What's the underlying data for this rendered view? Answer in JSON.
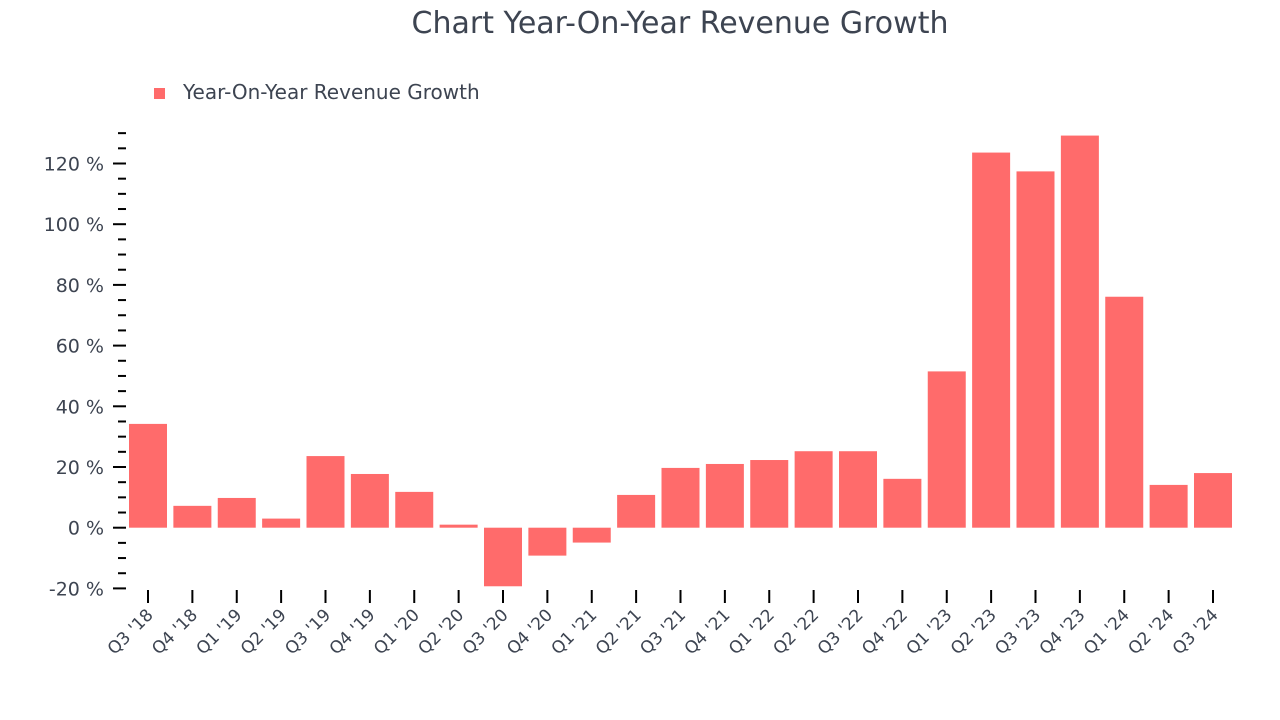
{
  "chart_data": {
    "type": "bar",
    "title": "Chart Year-On-Year Revenue Growth",
    "legend": "top-left",
    "grid": false,
    "bar_color": "#ff6b6b",
    "ylim": [
      -20,
      130
    ],
    "yticks": [
      -20,
      0,
      20,
      40,
      60,
      80,
      100,
      120
    ],
    "ytick_labels": [
      "-20 %",
      "0 %",
      "20 %",
      "40 %",
      "60 %",
      "80 %",
      "100 %",
      "120 %"
    ],
    "categories": [
      "Q3 '18",
      "Q4 '18",
      "Q1 '19",
      "Q2 '19",
      "Q3 '19",
      "Q4 '19",
      "Q1 '20",
      "Q2 '20",
      "Q3 '20",
      "Q4 '20",
      "Q1 '21",
      "Q2 '21",
      "Q3 '21",
      "Q4 '21",
      "Q1 '22",
      "Q2 '22",
      "Q3 '22",
      "Q4 '22",
      "Q1 '23",
      "Q2 '23",
      "Q3 '23",
      "Q4 '23",
      "Q1 '24",
      "Q2 '24",
      "Q3 '24"
    ],
    "series": [
      {
        "name": "Year-On-Year Revenue Growth",
        "values": [
          34.2,
          7.2,
          9.8,
          3.0,
          23.6,
          17.7,
          11.8,
          1.0,
          -19.3,
          -9.2,
          -4.9,
          10.8,
          19.7,
          21.0,
          22.3,
          25.2,
          25.2,
          16.1,
          51.5,
          123.6,
          117.4,
          129.2,
          76.1,
          14.1,
          18.0
        ]
      }
    ]
  }
}
